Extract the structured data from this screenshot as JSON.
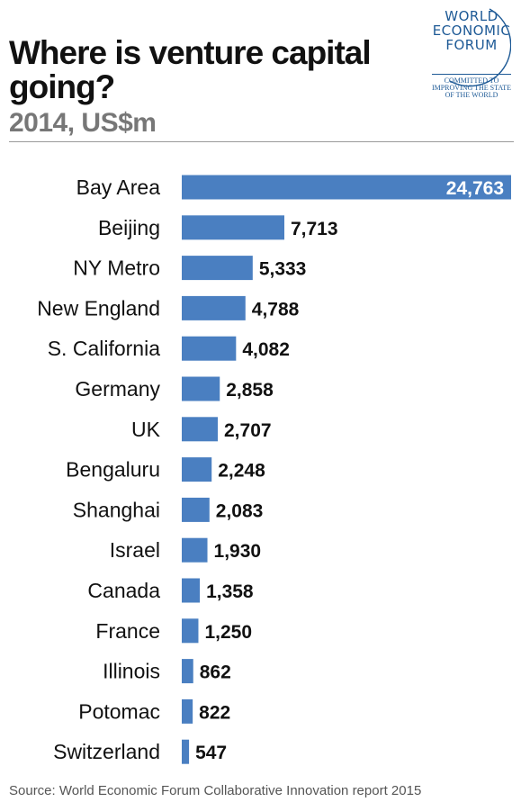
{
  "logo": {
    "line1": "WORLD",
    "line2": "ECONOMIC",
    "line3": "FORUM",
    "tag1": "COMMITTED TO",
    "tag2": "IMPROVING THE STATE",
    "tag3": "OF THE WORLD"
  },
  "chart_data": {
    "type": "bar",
    "orientation": "horizontal",
    "title": "Where is venture capital going?",
    "subtitle": "2014, US$m",
    "categories": [
      "Bay Area",
      "Beijing",
      "NY Metro",
      "New England",
      "S. California",
      "Germany",
      "UK",
      "Bengaluru",
      "Shanghai",
      "Israel",
      "Canada",
      "France",
      "Illinois",
      "Potomac",
      "Switzerland"
    ],
    "values": [
      24763,
      7713,
      5333,
      4788,
      4082,
      2858,
      2707,
      2248,
      2083,
      1930,
      1358,
      1250,
      862,
      822,
      547
    ],
    "value_labels": [
      "24,763",
      "7,713",
      "5,333",
      "4,788",
      "4,082",
      "2,858",
      "2,707",
      "2,248",
      "2,083",
      "1,930",
      "1,358",
      "1,250",
      "862",
      "822",
      "547"
    ],
    "xlim": [
      0,
      24763
    ],
    "grid": false,
    "bar_color": "#4a7fc1",
    "inside_label_color": "#ffffff",
    "outside_label_color": "#111111"
  },
  "source": "Source: World Economic Forum Collaborative Innovation report 2015"
}
